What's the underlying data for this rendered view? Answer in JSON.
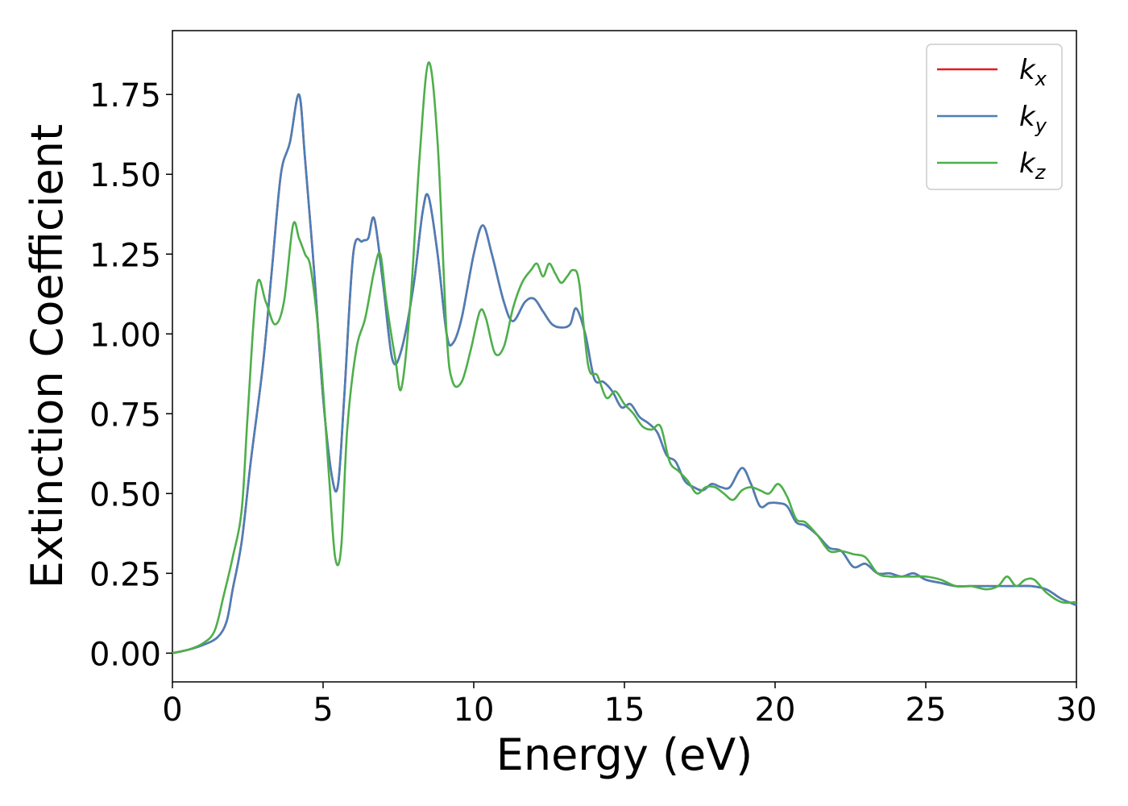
{
  "chart_data": {
    "type": "line",
    "title": "",
    "xlabel": "Energy (eV)",
    "ylabel": "Extinction Coefficient",
    "xlim": [
      0,
      30
    ],
    "ylim": [
      -0.09,
      1.95
    ],
    "grid": false,
    "legend_position": "top-right",
    "x_ticks": [
      {
        "value": 0,
        "label": "0"
      },
      {
        "value": 5,
        "label": "5"
      },
      {
        "value": 10,
        "label": "10"
      },
      {
        "value": 15,
        "label": "15"
      },
      {
        "value": 20,
        "label": "20"
      },
      {
        "value": 25,
        "label": "25"
      },
      {
        "value": 30,
        "label": "30"
      }
    ],
    "y_ticks": [
      {
        "value": 0.0,
        "label": "0.00"
      },
      {
        "value": 0.25,
        "label": "0.25"
      },
      {
        "value": 0.5,
        "label": "0.50"
      },
      {
        "value": 0.75,
        "label": "0.75"
      },
      {
        "value": 1.0,
        "label": "1.00"
      },
      {
        "value": 1.25,
        "label": "1.25"
      },
      {
        "value": 1.5,
        "label": "1.50"
      },
      {
        "value": 1.75,
        "label": "1.75"
      }
    ],
    "series": [
      {
        "name": "k_x",
        "label_main": "k",
        "label_sub": "x",
        "color": "#e41a1c",
        "x": [
          0,
          0.5,
          1.0,
          1.5,
          1.8,
          2.0,
          2.3,
          2.6,
          3.0,
          3.3,
          3.6,
          3.9,
          4.2,
          4.4,
          4.7,
          5.0,
          5.3,
          5.5,
          5.7,
          6.0,
          6.3,
          6.5,
          6.7,
          7.0,
          7.3,
          7.6,
          8.0,
          8.3,
          8.5,
          8.8,
          9.1,
          9.3,
          9.6,
          10.0,
          10.3,
          10.6,
          11.0,
          11.3,
          11.7,
          12.0,
          12.3,
          12.6,
          12.9,
          13.2,
          13.4,
          13.7,
          14.0,
          14.3,
          14.6,
          14.9,
          15.2,
          15.5,
          15.8,
          16.1,
          16.4,
          16.7,
          17.0,
          17.3,
          17.6,
          17.9,
          18.2,
          18.5,
          18.9,
          19.2,
          19.5,
          19.8,
          20.1,
          20.4,
          20.7,
          21.0,
          21.4,
          21.8,
          22.2,
          22.6,
          23.0,
          23.4,
          23.8,
          24.2,
          24.6,
          25.0,
          25.5,
          26.0,
          26.5,
          27.0,
          27.5,
          28.0,
          28.5,
          29.0,
          29.5,
          30.0
        ],
        "y": [
          0,
          0.01,
          0.025,
          0.05,
          0.1,
          0.2,
          0.35,
          0.6,
          0.9,
          1.2,
          1.5,
          1.6,
          1.75,
          1.55,
          1.2,
          0.8,
          0.55,
          0.53,
          0.8,
          1.25,
          1.29,
          1.3,
          1.36,
          1.15,
          0.92,
          0.95,
          1.15,
          1.38,
          1.43,
          1.25,
          1.0,
          0.97,
          1.05,
          1.25,
          1.34,
          1.25,
          1.1,
          1.04,
          1.1,
          1.11,
          1.07,
          1.03,
          1.02,
          1.03,
          1.08,
          1.0,
          0.86,
          0.85,
          0.82,
          0.77,
          0.78,
          0.74,
          0.72,
          0.69,
          0.62,
          0.6,
          0.54,
          0.52,
          0.51,
          0.53,
          0.52,
          0.52,
          0.58,
          0.53,
          0.46,
          0.47,
          0.47,
          0.46,
          0.41,
          0.4,
          0.37,
          0.33,
          0.32,
          0.27,
          0.28,
          0.25,
          0.25,
          0.24,
          0.25,
          0.23,
          0.22,
          0.21,
          0.21,
          0.21,
          0.21,
          0.21,
          0.21,
          0.2,
          0.17,
          0.15
        ]
      },
      {
        "name": "k_y",
        "label_main": "k",
        "label_sub": "y",
        "color": "#4a7fb8",
        "x": [
          0,
          0.5,
          1.0,
          1.5,
          1.8,
          2.0,
          2.3,
          2.6,
          3.0,
          3.3,
          3.6,
          3.9,
          4.2,
          4.4,
          4.7,
          5.0,
          5.3,
          5.5,
          5.7,
          6.0,
          6.3,
          6.5,
          6.7,
          7.0,
          7.3,
          7.6,
          8.0,
          8.3,
          8.5,
          8.8,
          9.1,
          9.3,
          9.6,
          10.0,
          10.3,
          10.6,
          11.0,
          11.3,
          11.7,
          12.0,
          12.3,
          12.6,
          12.9,
          13.2,
          13.4,
          13.7,
          14.0,
          14.3,
          14.6,
          14.9,
          15.2,
          15.5,
          15.8,
          16.1,
          16.4,
          16.7,
          17.0,
          17.3,
          17.6,
          17.9,
          18.2,
          18.5,
          18.9,
          19.2,
          19.5,
          19.8,
          20.1,
          20.4,
          20.7,
          21.0,
          21.4,
          21.8,
          22.2,
          22.6,
          23.0,
          23.4,
          23.8,
          24.2,
          24.6,
          25.0,
          25.5,
          26.0,
          26.5,
          27.0,
          27.5,
          28.0,
          28.5,
          29.0,
          29.5,
          30.0
        ],
        "y": [
          0,
          0.01,
          0.025,
          0.05,
          0.1,
          0.2,
          0.35,
          0.6,
          0.9,
          1.2,
          1.5,
          1.6,
          1.75,
          1.55,
          1.2,
          0.8,
          0.55,
          0.53,
          0.8,
          1.25,
          1.29,
          1.3,
          1.36,
          1.15,
          0.92,
          0.95,
          1.15,
          1.38,
          1.43,
          1.25,
          1.0,
          0.97,
          1.05,
          1.25,
          1.34,
          1.25,
          1.1,
          1.04,
          1.1,
          1.11,
          1.07,
          1.03,
          1.02,
          1.03,
          1.08,
          1.0,
          0.86,
          0.85,
          0.82,
          0.77,
          0.78,
          0.74,
          0.72,
          0.69,
          0.62,
          0.6,
          0.54,
          0.52,
          0.51,
          0.53,
          0.52,
          0.52,
          0.58,
          0.53,
          0.46,
          0.47,
          0.47,
          0.46,
          0.41,
          0.4,
          0.37,
          0.33,
          0.32,
          0.27,
          0.28,
          0.25,
          0.25,
          0.24,
          0.25,
          0.23,
          0.22,
          0.21,
          0.21,
          0.21,
          0.21,
          0.21,
          0.21,
          0.2,
          0.17,
          0.15
        ]
      },
      {
        "name": "k_z",
        "label_main": "k",
        "label_sub": "z",
        "color": "#4daf4a",
        "x": [
          0,
          0.5,
          1.0,
          1.4,
          1.7,
          2.0,
          2.3,
          2.5,
          2.8,
          3.1,
          3.4,
          3.7,
          4.0,
          4.2,
          4.4,
          4.6,
          4.9,
          5.2,
          5.4,
          5.6,
          5.8,
          6.1,
          6.4,
          6.7,
          6.9,
          7.1,
          7.4,
          7.6,
          7.9,
          8.2,
          8.5,
          8.8,
          9.1,
          9.3,
          9.6,
          9.9,
          10.2,
          10.4,
          10.7,
          11.0,
          11.3,
          11.6,
          11.9,
          12.1,
          12.3,
          12.5,
          12.7,
          12.9,
          13.1,
          13.3,
          13.5,
          13.8,
          14.1,
          14.4,
          14.7,
          15.0,
          15.3,
          15.6,
          15.9,
          16.2,
          16.5,
          16.8,
          17.1,
          17.4,
          17.7,
          18.0,
          18.3,
          18.6,
          18.9,
          19.2,
          19.5,
          19.8,
          20.1,
          20.4,
          20.7,
          21.0,
          21.4,
          21.8,
          22.2,
          22.6,
          23.0,
          23.4,
          23.8,
          24.2,
          24.6,
          25.0,
          25.5,
          26.0,
          26.5,
          27.0,
          27.4,
          27.7,
          28.0,
          28.3,
          28.6,
          29.0,
          29.5,
          30.0
        ],
        "y": [
          0,
          0.01,
          0.03,
          0.07,
          0.18,
          0.3,
          0.45,
          0.75,
          1.15,
          1.1,
          1.03,
          1.1,
          1.34,
          1.3,
          1.25,
          1.2,
          0.95,
          0.55,
          0.3,
          0.33,
          0.7,
          0.95,
          1.05,
          1.2,
          1.25,
          1.1,
          0.92,
          0.83,
          1.1,
          1.55,
          1.85,
          1.6,
          1.0,
          0.85,
          0.85,
          0.95,
          1.07,
          1.05,
          0.94,
          0.96,
          1.08,
          1.16,
          1.2,
          1.22,
          1.18,
          1.22,
          1.19,
          1.16,
          1.18,
          1.2,
          1.16,
          0.9,
          0.87,
          0.8,
          0.82,
          0.78,
          0.75,
          0.71,
          0.7,
          0.71,
          0.6,
          0.57,
          0.54,
          0.5,
          0.52,
          0.52,
          0.5,
          0.48,
          0.51,
          0.52,
          0.51,
          0.5,
          0.53,
          0.49,
          0.42,
          0.41,
          0.37,
          0.32,
          0.32,
          0.31,
          0.3,
          0.25,
          0.24,
          0.24,
          0.24,
          0.24,
          0.23,
          0.21,
          0.21,
          0.2,
          0.21,
          0.24,
          0.21,
          0.23,
          0.23,
          0.19,
          0.16,
          0.16
        ]
      }
    ]
  }
}
